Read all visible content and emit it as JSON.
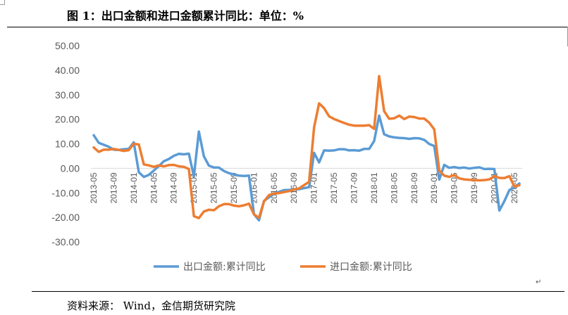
{
  "title": "图 1：出口金额和进口金额累计同比：单位：%",
  "source": "资料来源： Wind，金信期货研究院",
  "colors": {
    "export": "#5B9BD5",
    "import": "#ED7D31",
    "axis_text": "#595959",
    "zero_line": "#D9D9D9"
  },
  "chart_data": {
    "type": "line",
    "title": "",
    "xlabel": "",
    "ylabel": "",
    "ylim": [
      -30,
      50
    ],
    "yticks": [
      50,
      40,
      30,
      20,
      10,
      0,
      -10,
      -20,
      -30
    ],
    "ytick_labels": [
      "50.00",
      "40.00",
      "30.00",
      "20.00",
      "10.00",
      "0.00",
      "-10.00",
      "-20.00",
      "-30.00"
    ],
    "grid": false,
    "legend_position": "bottom",
    "x_tick_labels": [
      "2013-05",
      "2013-09",
      "2014-01",
      "2014-05",
      "2014-09",
      "2015-01",
      "2015-05",
      "2015-09",
      "2016-01",
      "2016-05",
      "2016-09",
      "2017-01",
      "2017-05",
      "2017-09",
      "2018-01",
      "2018-05",
      "2018-09",
      "2019-01",
      "2019-05",
      "2019-09",
      "2020-01",
      "2020-05"
    ],
    "x": [
      "2013-05",
      "2013-06",
      "2013-07",
      "2013-08",
      "2013-09",
      "2013-10",
      "2013-11",
      "2013-12",
      "2014-01",
      "2014-02",
      "2014-03",
      "2014-04",
      "2014-05",
      "2014-06",
      "2014-07",
      "2014-08",
      "2014-09",
      "2014-10",
      "2014-11",
      "2014-12",
      "2015-01",
      "2015-02",
      "2015-03",
      "2015-04",
      "2015-05",
      "2015-06",
      "2015-07",
      "2015-08",
      "2015-09",
      "2015-10",
      "2015-11",
      "2015-12",
      "2016-01",
      "2016-02",
      "2016-03",
      "2016-04",
      "2016-05",
      "2016-06",
      "2016-07",
      "2016-08",
      "2016-09",
      "2016-10",
      "2016-11",
      "2016-12",
      "2017-01",
      "2017-02",
      "2017-03",
      "2017-04",
      "2017-05",
      "2017-06",
      "2017-07",
      "2017-08",
      "2017-09",
      "2017-10",
      "2017-11",
      "2017-12",
      "2018-01",
      "2018-02",
      "2018-03",
      "2018-04",
      "2018-05",
      "2018-06",
      "2018-07",
      "2018-08",
      "2018-09",
      "2018-10",
      "2018-11",
      "2018-12",
      "2019-01",
      "2019-02",
      "2019-03",
      "2019-04",
      "2019-05",
      "2019-06",
      "2019-07",
      "2019-08",
      "2019-09",
      "2019-10",
      "2019-11",
      "2019-12",
      "2020-01",
      "2020-02",
      "2020-03",
      "2020-04",
      "2020-05",
      "2020-06"
    ],
    "series": [
      {
        "name": "出口金额:累计同比",
        "values": [
          13.5,
          10.4,
          9.6,
          8.8,
          7.6,
          7.5,
          7.8,
          7.9,
          10.6,
          -1.6,
          -3.5,
          -2.7,
          -0.9,
          0.9,
          2.9,
          3.8,
          5.1,
          5.9,
          5.7,
          6.0,
          -3.3,
          15.0,
          4.9,
          1.1,
          0.3,
          0.3,
          -1.1,
          -2.0,
          -2.5,
          -3.0,
          -3.1,
          -3.0,
          -18.7,
          -21.2,
          -13.3,
          -11.8,
          -10.5,
          -9.6,
          -8.9,
          -8.8,
          -8.7,
          -8.5,
          -8.1,
          -7.7,
          6.3,
          2.4,
          7.3,
          7.2,
          7.3,
          7.8,
          7.8,
          7.3,
          7.4,
          7.2,
          7.9,
          7.9,
          11.1,
          21.5,
          13.9,
          13.0,
          12.6,
          12.4,
          12.3,
          12.0,
          12.3,
          12.2,
          11.6,
          9.9,
          9.1,
          -4.6,
          1.4,
          0.2,
          0.5,
          0.1,
          0.3,
          -0.1,
          0.2,
          0.4,
          -0.3,
          -0.2,
          -0.3,
          -17.2,
          -13.4,
          -8.9,
          -7.7,
          -6.2
        ]
      },
      {
        "name": "进口金额:累计同比",
        "values": [
          8.5,
          6.7,
          7.6,
          7.6,
          7.9,
          7.5,
          7.1,
          7.4,
          10.0,
          9.7,
          1.6,
          1.2,
          0.6,
          1.2,
          0.8,
          1.3,
          1.4,
          0.8,
          0.6,
          -0.3,
          -19.5,
          -20.3,
          -17.6,
          -16.9,
          -17.1,
          -15.5,
          -14.6,
          -14.6,
          -15.2,
          -15.5,
          -15.1,
          -14.4,
          -18.8,
          -20.2,
          -13.5,
          -10.9,
          -10.3,
          -10.1,
          -9.7,
          -9.3,
          -8.7,
          -8.2,
          -6.9,
          -5.5,
          16.7,
          26.5,
          24.5,
          21.2,
          20.1,
          19.3,
          18.5,
          17.8,
          17.4,
          17.4,
          17.4,
          17.6,
          16.1,
          37.6,
          23.3,
          20.2,
          20.4,
          21.5,
          20.1,
          21.1,
          20.9,
          20.3,
          20.3,
          18.6,
          15.9,
          -0.9,
          -3.0,
          -3.5,
          -2.7,
          -4.1,
          -4.5,
          -4.7,
          -4.8,
          -4.9,
          -4.8,
          -4.5,
          -3.2,
          -3.9,
          -4.0,
          -3.2,
          -7.4,
          -6.9
        ]
      }
    ]
  }
}
